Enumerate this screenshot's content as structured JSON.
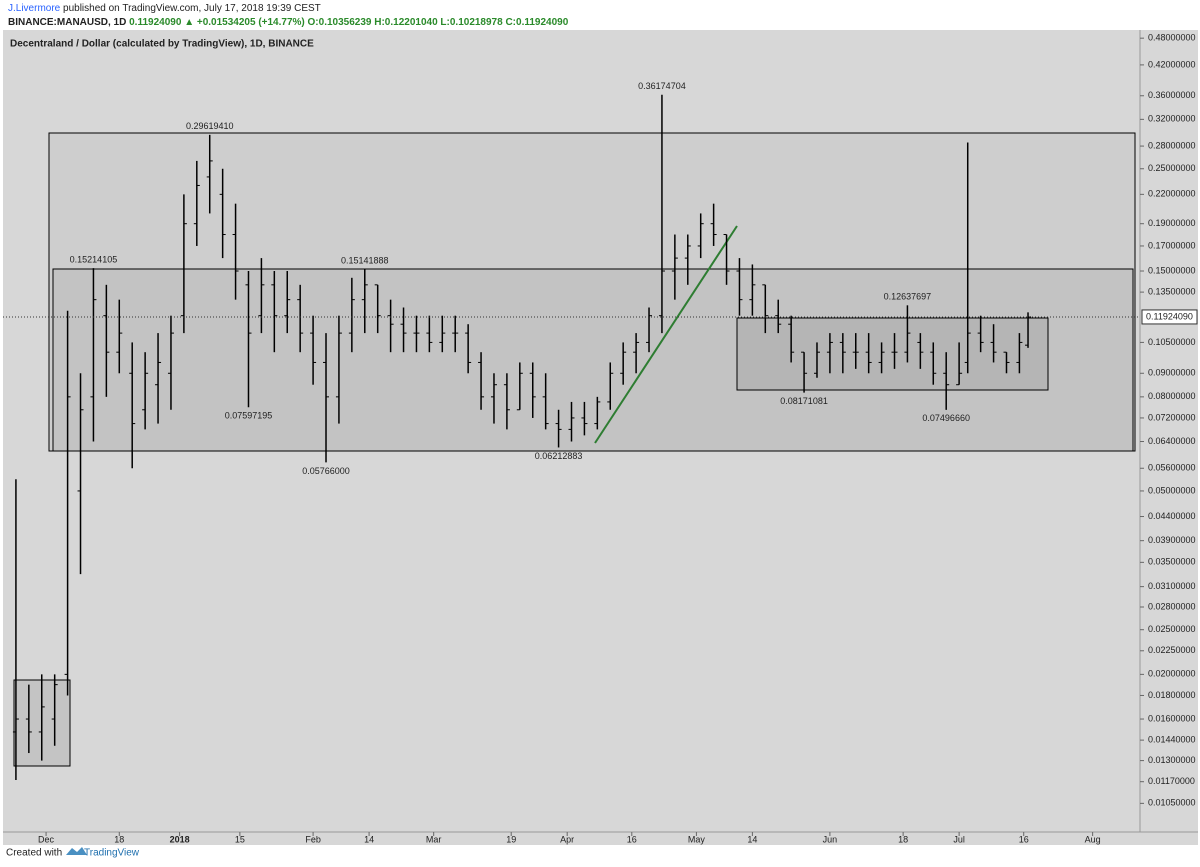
{
  "header": {
    "author": "J.Livermore",
    "published": " published on TradingView.com, July 17, 2018 19:39 CEST",
    "symbol": "BINANCE:MANAUSD, 1D",
    "price": "0.11924090",
    "arrow": "▲",
    "change": "+0.01534205 (+14.77%)",
    "ohlc": "O:0.10356239 H:0.12201040 L:0.10218978 C:0.11924090"
  },
  "footer": {
    "created": "Created with",
    "brand": "TradingView"
  },
  "chart_data": {
    "type": "ohlc",
    "title": "Decentraland / Dollar (calculated by TradingView), 1D, BINANCE",
    "log_scale": true,
    "grid": false,
    "color": "#000000",
    "x": [
      "2017-11-24",
      "2017-11-27",
      "2017-11-30",
      "2017-12-03",
      "2017-12-06",
      "2017-12-09",
      "2017-12-12",
      "2017-12-15",
      "2017-12-18",
      "2017-12-21",
      "2017-12-24",
      "2017-12-27",
      "2017-12-30",
      "2018-01-02",
      "2018-01-05",
      "2018-01-08",
      "2018-01-11",
      "2018-01-14",
      "2018-01-17",
      "2018-01-20",
      "2018-01-23",
      "2018-01-26",
      "2018-01-29",
      "2018-02-01",
      "2018-02-04",
      "2018-02-07",
      "2018-02-10",
      "2018-02-13",
      "2018-02-16",
      "2018-02-19",
      "2018-02-22",
      "2018-02-25",
      "2018-02-28",
      "2018-03-03",
      "2018-03-06",
      "2018-03-09",
      "2018-03-12",
      "2018-03-15",
      "2018-03-18",
      "2018-03-21",
      "2018-03-24",
      "2018-03-27",
      "2018-03-30",
      "2018-04-02",
      "2018-04-05",
      "2018-04-08",
      "2018-04-11",
      "2018-04-14",
      "2018-04-17",
      "2018-04-20",
      "2018-04-23",
      "2018-04-26",
      "2018-04-29",
      "2018-05-02",
      "2018-05-05",
      "2018-05-08",
      "2018-05-11",
      "2018-05-14",
      "2018-05-17",
      "2018-05-20",
      "2018-05-23",
      "2018-05-26",
      "2018-05-29",
      "2018-06-01",
      "2018-06-04",
      "2018-06-07",
      "2018-06-10",
      "2018-06-13",
      "2018-06-16",
      "2018-06-19",
      "2018-06-22",
      "2018-06-25",
      "2018-06-28",
      "2018-07-01",
      "2018-07-03",
      "2018-07-06",
      "2018-07-09",
      "2018-07-12",
      "2018-07-15",
      "2018-07-17"
    ],
    "open": [
      0.015,
      0.016,
      0.015,
      0.016,
      0.02,
      0.05,
      0.08,
      0.12,
      0.1,
      0.09,
      0.075,
      0.085,
      0.09,
      0.12,
      0.19,
      0.24,
      0.22,
      0.18,
      0.14,
      0.12,
      0.14,
      0.12,
      0.13,
      0.11,
      0.095,
      0.08,
      0.11,
      0.13,
      0.14,
      0.12,
      0.115,
      0.11,
      0.11,
      0.105,
      0.11,
      0.11,
      0.095,
      0.08,
      0.085,
      0.075,
      0.09,
      0.08,
      0.07,
      0.068,
      0.072,
      0.07,
      0.078,
      0.09,
      0.1,
      0.105,
      0.12,
      0.15,
      0.16,
      0.17,
      0.19,
      0.18,
      0.15,
      0.13,
      0.14,
      0.12,
      0.115,
      0.1,
      0.09,
      0.1,
      0.105,
      0.1,
      0.1,
      0.095,
      0.1,
      0.1,
      0.105,
      0.1,
      0.09,
      0.085,
      0.095,
      0.11,
      0.105,
      0.1,
      0.095,
      0.10356239
    ],
    "high": [
      0.053,
      0.019,
      0.02,
      0.02,
      0.123,
      0.09,
      0.15214105,
      0.14,
      0.13,
      0.105,
      0.1,
      0.11,
      0.12,
      0.22,
      0.26,
      0.2961941,
      0.25,
      0.21,
      0.15,
      0.16,
      0.15,
      0.15,
      0.14,
      0.12,
      0.11,
      0.12,
      0.145,
      0.15141888,
      0.14,
      0.13,
      0.125,
      0.12,
      0.12,
      0.12,
      0.12,
      0.115,
      0.1,
      0.09,
      0.09,
      0.095,
      0.095,
      0.09,
      0.075,
      0.078,
      0.078,
      0.08,
      0.095,
      0.105,
      0.11,
      0.125,
      0.36174704,
      0.18,
      0.18,
      0.2,
      0.21,
      0.18,
      0.16,
      0.155,
      0.14,
      0.13,
      0.12,
      0.1,
      0.105,
      0.11,
      0.11,
      0.11,
      0.11,
      0.105,
      0.11,
      0.12637697,
      0.11,
      0.105,
      0.1,
      0.105,
      0.285,
      0.12,
      0.115,
      0.1,
      0.11,
      0.1220104
    ],
    "low": [
      0.0118,
      0.0135,
      0.013,
      0.014,
      0.018,
      0.033,
      0.064,
      0.08,
      0.09,
      0.056,
      0.068,
      0.07,
      0.075,
      0.11,
      0.17,
      0.2,
      0.16,
      0.13,
      0.07597195,
      0.11,
      0.1,
      0.11,
      0.1,
      0.085,
      0.05766,
      0.07,
      0.1,
      0.11,
      0.11,
      0.1,
      0.1,
      0.1,
      0.1,
      0.1,
      0.1,
      0.09,
      0.075,
      0.07,
      0.068,
      0.075,
      0.072,
      0.068,
      0.06212883,
      0.064,
      0.066,
      0.068,
      0.075,
      0.085,
      0.09,
      0.1,
      0.11,
      0.13,
      0.14,
      0.16,
      0.17,
      0.14,
      0.12,
      0.12,
      0.11,
      0.11,
      0.095,
      0.08171081,
      0.088,
      0.09,
      0.09,
      0.092,
      0.09,
      0.09,
      0.092,
      0.095,
      0.092,
      0.085,
      0.0749666,
      0.085,
      0.09,
      0.1,
      0.095,
      0.09,
      0.09,
      0.10218978
    ],
    "close": [
      0.016,
      0.015,
      0.017,
      0.019,
      0.08,
      0.075,
      0.13,
      0.1,
      0.11,
      0.07,
      0.09,
      0.095,
      0.11,
      0.19,
      0.23,
      0.26,
      0.18,
      0.15,
      0.11,
      0.14,
      0.12,
      0.13,
      0.11,
      0.095,
      0.08,
      0.11,
      0.13,
      0.14,
      0.12,
      0.115,
      0.11,
      0.11,
      0.105,
      0.11,
      0.11,
      0.095,
      0.08,
      0.085,
      0.075,
      0.09,
      0.08,
      0.07,
      0.068,
      0.072,
      0.07,
      0.078,
      0.09,
      0.1,
      0.105,
      0.12,
      0.15,
      0.16,
      0.17,
      0.19,
      0.18,
      0.15,
      0.13,
      0.14,
      0.12,
      0.115,
      0.1,
      0.09,
      0.1,
      0.105,
      0.1,
      0.1,
      0.095,
      0.1,
      0.1,
      0.11,
      0.1,
      0.09,
      0.085,
      0.09,
      0.11,
      0.105,
      0.1,
      0.095,
      0.105,
      0.1192409
    ],
    "annotations": [
      {
        "date": "2018-01-08",
        "value": 0.2961941,
        "label": "0.29619410"
      },
      {
        "date": "2017-12-12",
        "value": 0.15214105,
        "label": "0.15214105"
      },
      {
        "date": "2018-02-13",
        "value": 0.15141888,
        "label": "0.15141888"
      },
      {
        "date": "2018-04-23",
        "value": 0.36174704,
        "label": "0.36174704"
      },
      {
        "date": "2018-06-19",
        "value": 0.12637697,
        "label": "0.12637697"
      },
      {
        "date": "2018-01-17",
        "value": 0.07597195,
        "label": "0.07597195"
      },
      {
        "date": "2018-02-04",
        "value": 0.05766,
        "label": "0.05766000"
      },
      {
        "date": "2018-03-30",
        "value": 0.06212883,
        "label": "0.06212883"
      },
      {
        "date": "2018-05-26",
        "value": 0.08171081,
        "label": "0.08171081"
      },
      {
        "date": "2018-06-28",
        "value": 0.0749666,
        "label": "0.07496660"
      }
    ],
    "last_price": {
      "value": 0.1192409,
      "label": "0.11924090"
    },
    "xlim": [
      "2017-11-21",
      "2018-08-12"
    ],
    "xticks": [
      {
        "value": "2017-12-01",
        "label": "Dec"
      },
      {
        "value": "2017-12-18",
        "label": "18"
      },
      {
        "value": "2018-01-01",
        "label": "2018"
      },
      {
        "value": "2018-01-15",
        "label": "15"
      },
      {
        "value": "2018-02-01",
        "label": "Feb"
      },
      {
        "value": "2018-02-14",
        "label": "14"
      },
      {
        "value": "2018-03-01",
        "label": "Mar"
      },
      {
        "value": "2018-03-19",
        "label": "19"
      },
      {
        "value": "2018-04-01",
        "label": "Apr"
      },
      {
        "value": "2018-04-16",
        "label": "16"
      },
      {
        "value": "2018-05-01",
        "label": "May"
      },
      {
        "value": "2018-05-14",
        "label": "14"
      },
      {
        "value": "2018-06-01",
        "label": "Jun"
      },
      {
        "value": "2018-06-18",
        "label": "18"
      },
      {
        "value": "2018-07-01",
        "label": "Jul"
      },
      {
        "value": "2018-07-16",
        "label": "16"
      },
      {
        "value": "2018-08-01",
        "label": "Aug"
      }
    ],
    "ylim": [
      0.0091,
      0.5
    ],
    "yticks": [
      {
        "value": 0.48,
        "label": "0.48000000"
      },
      {
        "value": 0.42,
        "label": "0.42000000"
      },
      {
        "value": 0.36,
        "label": "0.36000000"
      },
      {
        "value": 0.32,
        "label": "0.32000000"
      },
      {
        "value": 0.28,
        "label": "0.28000000"
      },
      {
        "value": 0.25,
        "label": "0.25000000"
      },
      {
        "value": 0.22,
        "label": "0.22000000"
      },
      {
        "value": 0.19,
        "label": "0.19000000"
      },
      {
        "value": 0.17,
        "label": "0.17000000"
      },
      {
        "value": 0.15,
        "label": "0.15000000"
      },
      {
        "value": 0.135,
        "label": "0.13500000"
      },
      {
        "value": 0.105,
        "label": "0.10500000"
      },
      {
        "value": 0.09,
        "label": "0.09000000"
      },
      {
        "value": 0.08,
        "label": "0.08000000"
      },
      {
        "value": 0.072,
        "label": "0.07200000"
      },
      {
        "value": 0.064,
        "label": "0.06400000"
      },
      {
        "value": 0.056,
        "label": "0.05600000"
      },
      {
        "value": 0.05,
        "label": "0.05000000"
      },
      {
        "value": 0.044,
        "label": "0.04400000"
      },
      {
        "value": 0.039,
        "label": "0.03900000"
      },
      {
        "value": 0.035,
        "label": "0.03500000"
      },
      {
        "value": 0.031,
        "label": "0.03100000"
      },
      {
        "value": 0.028,
        "label": "0.02800000"
      },
      {
        "value": 0.025,
        "label": "0.02500000"
      },
      {
        "value": 0.0225,
        "label": "0.02250000"
      },
      {
        "value": 0.02,
        "label": "0.02000000"
      },
      {
        "value": 0.018,
        "label": "0.01800000"
      },
      {
        "value": 0.016,
        "label": "0.01600000"
      },
      {
        "value": 0.0144,
        "label": "0.01440000"
      },
      {
        "value": 0.013,
        "label": "0.01300000"
      },
      {
        "value": 0.0117,
        "label": "0.01170000"
      },
      {
        "value": 0.0105,
        "label": "0.01050000"
      }
    ]
  }
}
